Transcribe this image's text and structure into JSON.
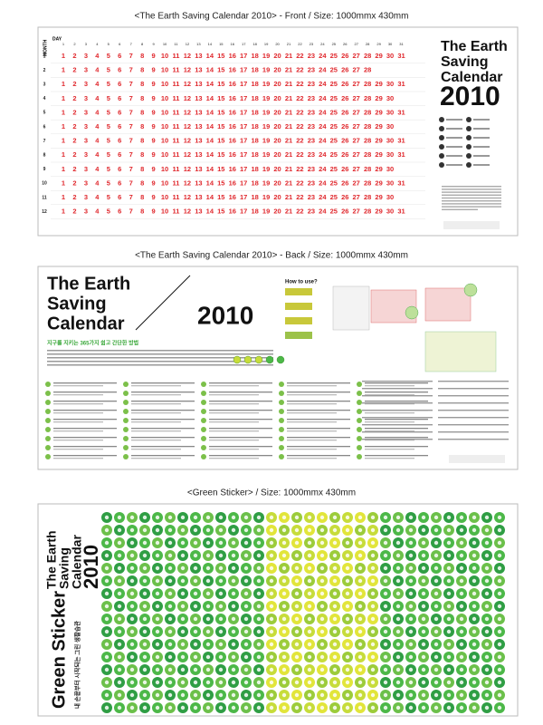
{
  "front": {
    "caption": "<The Earth Saving Calendar 2010>  - Front / Size: 1000mmx 430mm",
    "day_label": "DAY",
    "month_label": "MONTH",
    "title_lines": [
      "The Earth",
      "Saving",
      "Calendar"
    ],
    "year": "2010",
    "days": [
      1,
      2,
      3,
      4,
      5,
      6,
      7,
      8,
      9,
      10,
      11,
      12,
      13,
      14,
      15,
      16,
      17,
      18,
      19,
      20,
      21,
      22,
      23,
      24,
      25,
      26,
      27,
      28,
      29,
      30,
      31
    ],
    "months": [
      1,
      2,
      3,
      4,
      5,
      6,
      7,
      8,
      9,
      10,
      11,
      12
    ],
    "rows": [
      [
        1,
        2,
        3,
        4,
        5,
        6,
        7,
        8,
        9,
        10,
        11,
        12,
        13,
        14,
        15,
        16,
        17,
        18,
        19,
        20,
        21,
        22,
        23,
        24,
        25,
        26,
        27,
        28,
        29,
        30,
        31
      ],
      [
        1,
        2,
        3,
        4,
        5,
        6,
        7,
        8,
        9,
        10,
        11,
        12,
        13,
        14,
        15,
        16,
        17,
        18,
        19,
        20,
        21,
        22,
        23,
        24,
        25,
        26,
        27,
        28
      ],
      [
        1,
        2,
        3,
        4,
        5,
        6,
        7,
        8,
        9,
        10,
        11,
        12,
        13,
        14,
        15,
        16,
        17,
        18,
        19,
        20,
        21,
        22,
        23,
        24,
        25,
        26,
        27,
        28,
        29,
        30,
        31
      ],
      [
        1,
        2,
        3,
        4,
        5,
        6,
        7,
        8,
        9,
        10,
        11,
        12,
        13,
        14,
        15,
        16,
        17,
        18,
        19,
        20,
        21,
        22,
        23,
        24,
        25,
        26,
        27,
        28,
        29,
        30
      ],
      [
        1,
        2,
        3,
        4,
        5,
        6,
        7,
        8,
        9,
        10,
        11,
        12,
        13,
        14,
        15,
        16,
        17,
        18,
        19,
        20,
        21,
        22,
        23,
        24,
        25,
        26,
        27,
        28,
        29,
        30,
        31
      ],
      [
        1,
        2,
        3,
        4,
        5,
        6,
        7,
        8,
        9,
        10,
        11,
        12,
        13,
        14,
        15,
        16,
        17,
        18,
        19,
        20,
        21,
        22,
        23,
        24,
        25,
        26,
        27,
        28,
        29,
        30
      ],
      [
        1,
        2,
        3,
        4,
        5,
        6,
        7,
        8,
        9,
        10,
        11,
        12,
        13,
        14,
        15,
        16,
        17,
        18,
        19,
        20,
        21,
        22,
        23,
        24,
        25,
        26,
        27,
        28,
        29,
        30,
        31
      ],
      [
        1,
        2,
        3,
        4,
        5,
        6,
        7,
        8,
        9,
        10,
        11,
        12,
        13,
        14,
        15,
        16,
        17,
        18,
        19,
        20,
        21,
        22,
        23,
        24,
        25,
        26,
        27,
        28,
        29,
        30,
        31
      ],
      [
        1,
        2,
        3,
        4,
        5,
        6,
        7,
        8,
        9,
        10,
        11,
        12,
        13,
        14,
        15,
        16,
        17,
        18,
        19,
        20,
        21,
        22,
        23,
        24,
        25,
        26,
        27,
        28,
        29,
        30
      ],
      [
        1,
        2,
        3,
        4,
        5,
        6,
        7,
        8,
        9,
        10,
        11,
        12,
        13,
        14,
        15,
        16,
        17,
        18,
        19,
        20,
        21,
        22,
        23,
        24,
        25,
        26,
        27,
        28,
        29,
        30,
        31
      ],
      [
        1,
        2,
        3,
        4,
        5,
        6,
        7,
        8,
        9,
        10,
        11,
        12,
        13,
        14,
        15,
        16,
        17,
        18,
        19,
        20,
        21,
        22,
        23,
        24,
        25,
        26,
        27,
        28,
        29,
        30
      ],
      [
        1,
        2,
        3,
        4,
        5,
        6,
        7,
        8,
        9,
        10,
        11,
        12,
        13,
        14,
        15,
        16,
        17,
        18,
        19,
        20,
        21,
        22,
        23,
        24,
        25,
        26,
        27,
        28,
        29,
        30,
        31
      ]
    ]
  },
  "back": {
    "caption": "<The Earth Saving Calendar 2010>  - Back / Size: 1000mmx 430mm",
    "title_lines": [
      "The Earth",
      "Saving",
      "Calendar"
    ],
    "year": "2010",
    "subtitle": "지구를 지키는 365가지 쉽고 간단한 방법",
    "how_to": "How to use?"
  },
  "sticker": {
    "caption": "<Green Sticker> / Size: 1000mmx 430mm",
    "title_lines": [
      "The Earth",
      "Saving",
      "Calendar",
      "2010"
    ],
    "name": "Green Sticker",
    "tagline": "내 손끝부터 시작되는 그린 생활습관"
  }
}
